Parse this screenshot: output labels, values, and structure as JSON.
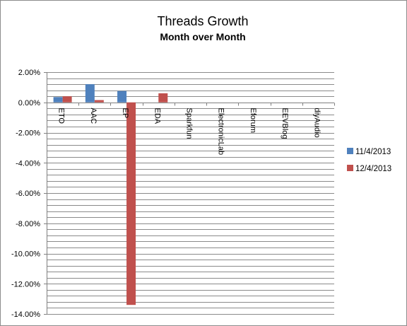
{
  "chart_data": {
    "type": "bar",
    "title": "Threads Growth",
    "subtitle": "Month over Month",
    "categories": [
      "ETO",
      "AAC",
      "EP",
      "EDA",
      "Sparkfun",
      "ElectronicLab",
      "Eforum",
      "EEVBlog",
      "diyAudio"
    ],
    "series": [
      {
        "name": "11/4/2013",
        "color": "#4f81bd",
        "values": [
          0.35,
          1.2,
          0.75,
          0,
          0,
          0,
          0,
          0,
          0
        ]
      },
      {
        "name": "12/4/2013",
        "color": "#c0504d",
        "values": [
          0.4,
          0.15,
          -13.4,
          0.6,
          0,
          0,
          0,
          0,
          0
        ]
      }
    ],
    "ylim": [
      -14,
      2
    ],
    "yticks": [
      2,
      0,
      -2,
      -4,
      -6,
      -8,
      -10,
      -12,
      -14
    ],
    "ytick_labels": [
      "2.00%",
      "0.00%",
      "-2.00%",
      "-4.00%",
      "-6.00%",
      "-8.00%",
      "-10.00%",
      "-12.00%",
      "-14.00%"
    ],
    "minor_grid_step": 0.4,
    "grid": true,
    "legend_position": "right"
  }
}
